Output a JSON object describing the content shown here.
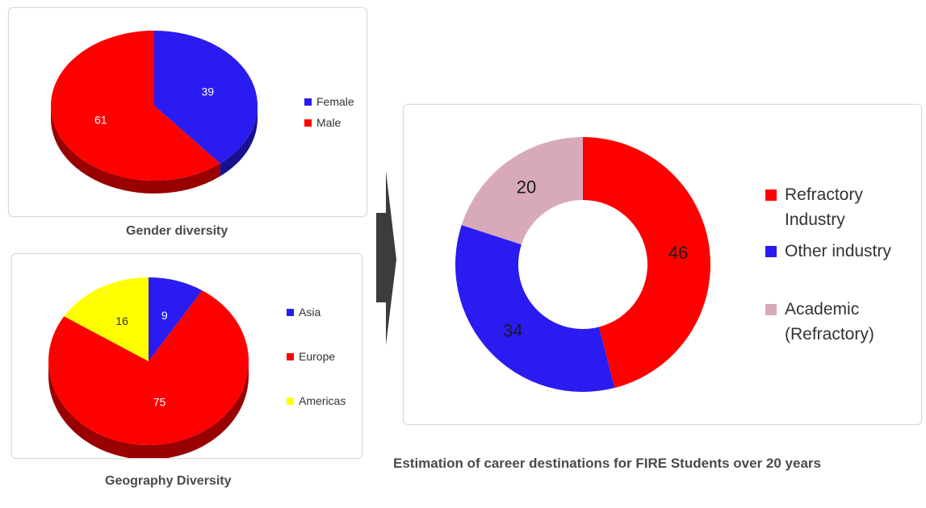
{
  "chart_data": [
    {
      "type": "pie",
      "title": "Gender diversity",
      "categories": [
        "Female",
        "Male"
      ],
      "values": [
        39,
        61
      ],
      "colors": [
        "#2a1bf0",
        "#ff0000"
      ],
      "legend_position": "right",
      "style": "3d"
    },
    {
      "type": "pie",
      "title": "Geography Diversity",
      "categories": [
        "Asia",
        "Europe",
        "Americas"
      ],
      "values": [
        9,
        75,
        16
      ],
      "colors": [
        "#2a1bf0",
        "#ff0000",
        "#ffff00"
      ],
      "legend_position": "right",
      "style": "3d"
    },
    {
      "type": "pie",
      "subtype": "donut",
      "title": "Estimation of career destinations for FIRE Students over 20 years",
      "categories": [
        "Refractory Industry",
        "Other industry",
        "Academic (Refractory)"
      ],
      "legend_labels": [
        "Refractory\nIndustry",
        "Other industry",
        "Academic\n(Refractory)"
      ],
      "values": [
        46,
        34,
        20
      ],
      "colors": [
        "#ff0000",
        "#2a1bf0",
        "#d8a9bb"
      ],
      "legend_position": "right"
    }
  ]
}
